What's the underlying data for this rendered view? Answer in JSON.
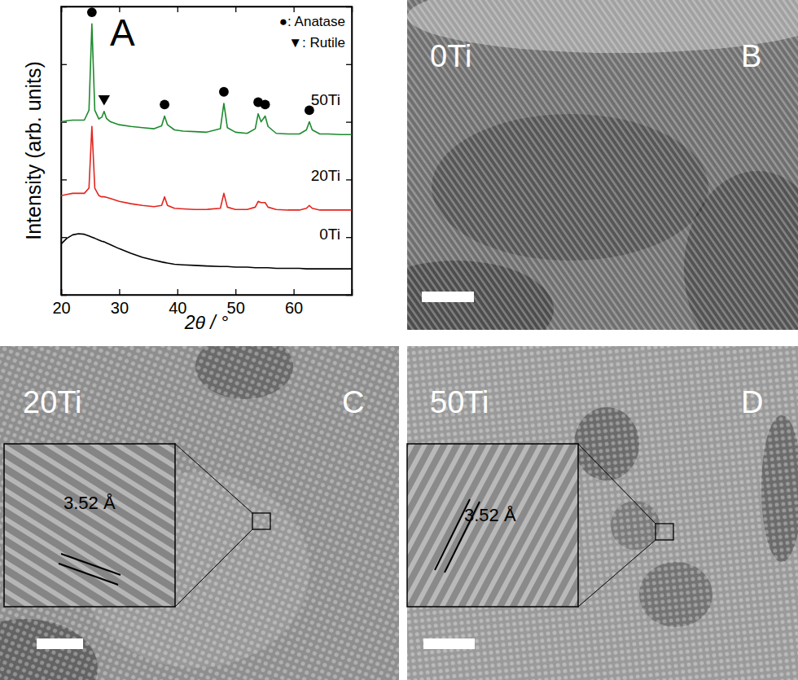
{
  "chart_data": {
    "type": "line",
    "title": "A",
    "x_label": "2θ / °",
    "y_label": "Intensity (arb. units)",
    "x": [
      20,
      21,
      22,
      23,
      24,
      24.8,
      25.3,
      25.8,
      26.5,
      27,
      27.4,
      27.8,
      28.5,
      30,
      32,
      34,
      36,
      37.3,
      37.8,
      38.3,
      39.5,
      41,
      43,
      45,
      47.4,
      48,
      48.6,
      50,
      52,
      53.4,
      53.9,
      54.4,
      55.1,
      55.6,
      57,
      59,
      61,
      62.2,
      62.7,
      63.2,
      64.5,
      66,
      68,
      70
    ],
    "series": [
      {
        "name": "50Ti",
        "color": "#1e8a2e",
        "values": [
          3.0,
          3.02,
          3.03,
          3.03,
          3.03,
          3.2,
          4.7,
          3.2,
          3.05,
          3.08,
          3.18,
          3.06,
          3.0,
          2.95,
          2.92,
          2.9,
          2.88,
          2.93,
          3.1,
          2.95,
          2.86,
          2.84,
          2.83,
          2.82,
          2.88,
          3.32,
          2.9,
          2.82,
          2.8,
          2.88,
          3.14,
          3.0,
          3.1,
          2.92,
          2.8,
          2.79,
          2.79,
          2.86,
          3.0,
          2.86,
          2.79,
          2.79,
          2.78,
          2.78
        ]
      },
      {
        "name": "20Ti",
        "color": "#e3251e",
        "values": [
          1.72,
          1.74,
          1.76,
          1.76,
          1.76,
          1.85,
          2.92,
          1.85,
          1.72,
          1.7,
          1.7,
          1.69,
          1.67,
          1.62,
          1.58,
          1.55,
          1.53,
          1.55,
          1.7,
          1.55,
          1.5,
          1.49,
          1.48,
          1.48,
          1.5,
          1.76,
          1.52,
          1.48,
          1.48,
          1.52,
          1.62,
          1.6,
          1.6,
          1.52,
          1.48,
          1.47,
          1.47,
          1.5,
          1.55,
          1.5,
          1.47,
          1.47,
          1.47,
          1.47
        ]
      },
      {
        "name": "0Ti",
        "color": "#000000",
        "values": [
          0.88,
          0.98,
          1.04,
          1.06,
          1.05,
          1.02,
          1.0,
          0.98,
          0.95,
          0.93,
          0.92,
          0.9,
          0.87,
          0.8,
          0.72,
          0.65,
          0.6,
          0.57,
          0.56,
          0.55,
          0.53,
          0.52,
          0.51,
          0.5,
          0.49,
          0.49,
          0.49,
          0.48,
          0.48,
          0.47,
          0.47,
          0.47,
          0.47,
          0.47,
          0.46,
          0.46,
          0.46,
          0.45,
          0.45,
          0.45,
          0.45,
          0.45,
          0.45,
          0.45
        ]
      }
    ],
    "xlim": [
      20,
      70
    ],
    "xticks": [
      20,
      30,
      40,
      50,
      60
    ],
    "ylim": [
      0,
      5
    ],
    "yticks": [
      1,
      2,
      3,
      4
    ],
    "tick_labels": "x",
    "legend": "upper right",
    "peak_markers": [
      {
        "label": "●: Anatase",
        "marker": "circle",
        "x": [
          25.3,
          37.8,
          48.0,
          53.9,
          55.1,
          62.7
        ],
        "y": [
          4.9,
          3.3,
          3.52,
          3.34,
          3.3,
          3.2
        ]
      },
      {
        "label": "▼: Rutile",
        "marker": "triangle-down",
        "x": [
          27.4
        ],
        "y": [
          3.4
        ]
      }
    ]
  },
  "panels": [
    {
      "label": "B",
      "sample": "0Ti"
    },
    {
      "label": "C",
      "sample": "20Ti",
      "inset": {
        "d_spacing": "3.52 Å"
      }
    },
    {
      "label": "D",
      "sample": "50Ti",
      "inset": {
        "d_spacing": "3.52 Å"
      }
    }
  ]
}
